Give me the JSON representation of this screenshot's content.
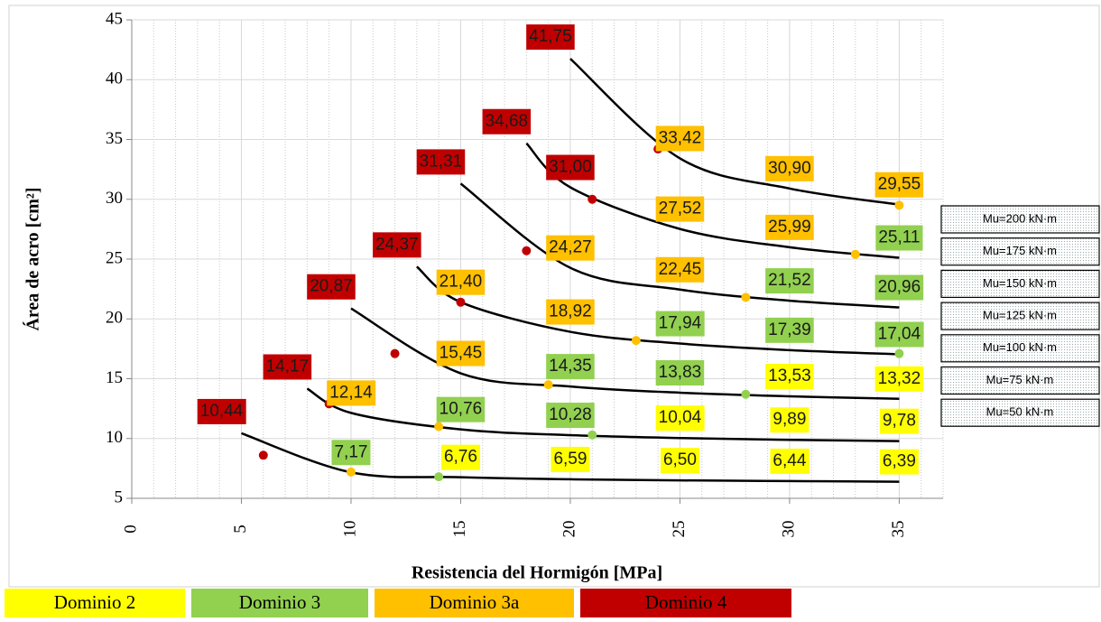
{
  "chart_data": {
    "type": "line",
    "x_label": "Resistencia del Hormigón [MPa]",
    "y_label": "Área de acro [cm²]",
    "xlim": [
      0,
      37
    ],
    "xticks": [
      0,
      5,
      10,
      15,
      20,
      25,
      30,
      35
    ],
    "ylim": [
      5,
      45
    ],
    "yticks": [
      5,
      10,
      15,
      20,
      25,
      30,
      35,
      40,
      45
    ],
    "grid": true,
    "line_color": "#000000",
    "series": [
      {
        "name": "Mu=200 kN·m",
        "x": [
          20,
          25,
          30,
          35
        ],
        "values": [
          41.75,
          33.42,
          30.9,
          29.55
        ],
        "value_labels": [
          "41,75",
          "33,42",
          "30,90",
          "29,55"
        ],
        "label_colors": [
          "#c00000",
          "#ffc000",
          "#ffc000",
          "#ffc000"
        ],
        "markers": {
          "x": [
            24,
            35
          ],
          "values": [
            34.2,
            29.5
          ],
          "colors": [
            "#c00000",
            "#ffc000"
          ]
        }
      },
      {
        "name": "Mu=175 kN·m",
        "x": [
          18,
          20,
          25,
          30,
          35
        ],
        "values": [
          34.68,
          31.0,
          27.52,
          25.99,
          25.11
        ],
        "value_labels": [
          "34,68",
          "31,00",
          "27,52",
          "25,99",
          "25,11"
        ],
        "label_colors": [
          "#c00000",
          "#c00000",
          "#ffc000",
          "#ffc000",
          "#92d050"
        ],
        "markers": {
          "x": [
            21,
            33
          ],
          "values": [
            30.0,
            25.4
          ],
          "colors": [
            "#c00000",
            "#ffc000"
          ]
        }
      },
      {
        "name": "Mu=150 kN·m",
        "x": [
          15,
          20,
          25,
          30,
          35
        ],
        "values": [
          31.31,
          24.27,
          22.45,
          21.52,
          20.96
        ],
        "value_labels": [
          "31,31",
          "24,27",
          "22,45",
          "21,52",
          "20,96"
        ],
        "label_colors": [
          "#c00000",
          "#ffc000",
          "#ffc000",
          "#92d050",
          "#92d050"
        ],
        "markers": {
          "x": [
            18,
            28
          ],
          "values": [
            25.7,
            21.8
          ],
          "colors": [
            "#c00000",
            "#ffc000"
          ]
        }
      },
      {
        "name": "Mu=125 kN·m",
        "x": [
          13,
          15,
          20,
          25,
          30,
          35
        ],
        "values": [
          24.37,
          21.4,
          18.92,
          17.94,
          17.39,
          17.04
        ],
        "value_labels": [
          "24,37",
          "21,40",
          "18,92",
          "17,94",
          "17,39",
          "17,04"
        ],
        "label_colors": [
          "#c00000",
          "#ffc000",
          "#ffc000",
          "#92d050",
          "#92d050",
          "#92d050"
        ],
        "markers": {
          "x": [
            15,
            23,
            35
          ],
          "values": [
            21.4,
            18.2,
            17.1
          ],
          "colors": [
            "#c00000",
            "#ffc000",
            "#92d050"
          ]
        }
      },
      {
        "name": "Mu=100 kN·m",
        "x": [
          10,
          15,
          20,
          25,
          30,
          35
        ],
        "values": [
          20.87,
          15.45,
          14.35,
          13.83,
          13.53,
          13.32
        ],
        "value_labels": [
          "20,87",
          "15,45",
          "14,35",
          "13,83",
          "13,53",
          "13,32"
        ],
        "label_colors": [
          "#c00000",
          "#ffc000",
          "#92d050",
          "#92d050",
          "#ffff00",
          "#ffff00"
        ],
        "markers": {
          "x": [
            12,
            19,
            28
          ],
          "values": [
            17.1,
            14.5,
            13.7
          ],
          "colors": [
            "#c00000",
            "#ffc000",
            "#92d050"
          ]
        }
      },
      {
        "name": "Mu=75 kN·m",
        "x": [
          8,
          10,
          15,
          20,
          25,
          30,
          35
        ],
        "values": [
          14.17,
          12.14,
          10.76,
          10.28,
          10.04,
          9.89,
          9.78
        ],
        "value_labels": [
          "14,17",
          "12,14",
          "10,76",
          "10,28",
          "10,04",
          "9,89",
          "9,78"
        ],
        "label_colors": [
          "#c00000",
          "#ffc000",
          "#92d050",
          "#92d050",
          "#ffff00",
          "#ffff00",
          "#ffff00"
        ],
        "markers": {
          "x": [
            9,
            14,
            21
          ],
          "values": [
            12.9,
            11.0,
            10.3
          ],
          "colors": [
            "#c00000",
            "#ffc000",
            "#92d050"
          ]
        }
      },
      {
        "name": "Mu=50 kN·m",
        "x": [
          5,
          10,
          15,
          20,
          25,
          30,
          35
        ],
        "values": [
          10.44,
          7.17,
          6.76,
          6.59,
          6.5,
          6.44,
          6.39
        ],
        "value_labels": [
          "10,44",
          "7,17",
          "6,76",
          "6,59",
          "6,50",
          "6,44",
          "6,39"
        ],
        "label_colors": [
          "#c00000",
          "#92d050",
          "#ffff00",
          "#ffff00",
          "#ffff00",
          "#ffff00",
          "#ffff00"
        ],
        "markers": {
          "x": [
            6,
            10,
            14
          ],
          "values": [
            8.6,
            7.2,
            6.8
          ],
          "colors": [
            "#c00000",
            "#ffc000",
            "#92d050"
          ]
        }
      }
    ],
    "domain_legend": [
      {
        "name": "Dominio 2",
        "color": "#ffff00"
      },
      {
        "name": "Dominio 3",
        "color": "#92d050"
      },
      {
        "name": "Dominio 3a",
        "color": "#ffc000"
      },
      {
        "name": "Dominio 4",
        "color": "#c00000"
      }
    ]
  }
}
